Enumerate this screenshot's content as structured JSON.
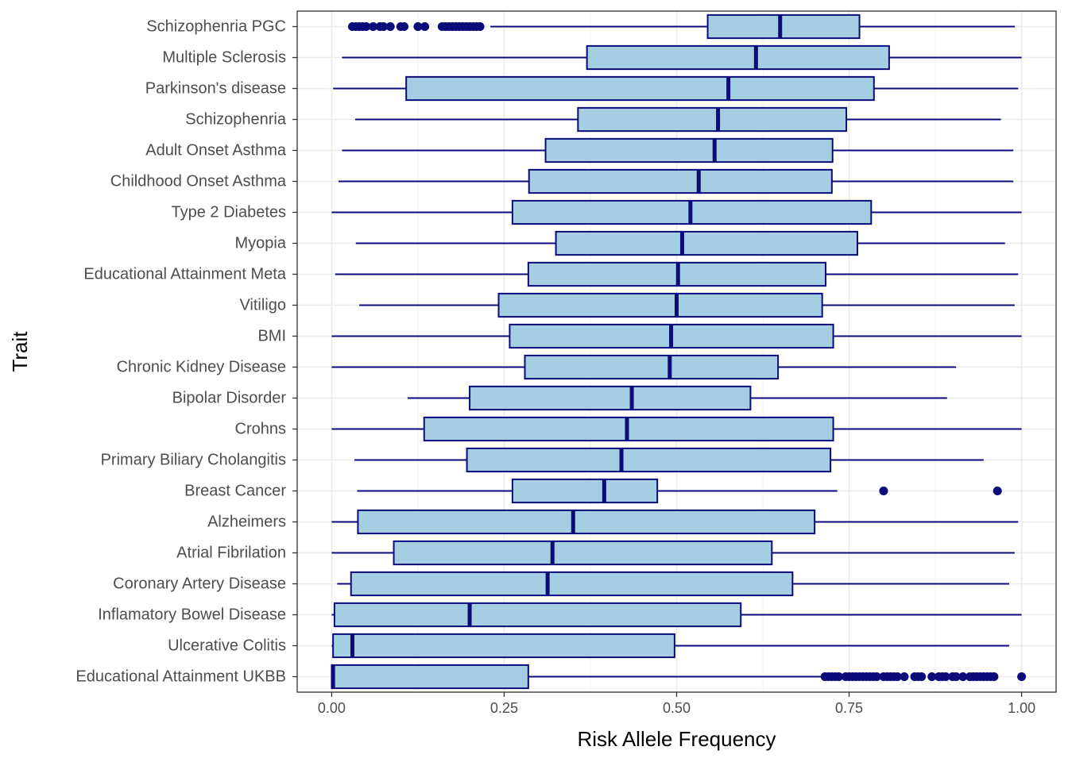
{
  "chart_data": {
    "type": "boxplot",
    "orientation": "horizontal",
    "xlabel": "Risk Allele Frequency",
    "ylabel": "Trait",
    "xlim": [
      -0.05,
      1.05
    ],
    "x_ticks": [
      "0.00",
      "0.25",
      "0.50",
      "0.75",
      "1.00"
    ],
    "x_tick_values": [
      0,
      0.25,
      0.5,
      0.75,
      1.0
    ],
    "grid": true,
    "colors": {
      "box_fill": "#a6cee3",
      "box_stroke": "#0b0b7a",
      "grid": "#ebebeb",
      "panel_border": "#333333"
    },
    "categories": [
      "Schizophenria PGC",
      "Multiple Sclerosis",
      "Parkinson's disease",
      "Schizophenria",
      "Adult Onset Asthma",
      "Childhood Onset Asthma",
      "Type 2 Diabetes",
      "Myopia",
      "Educational Attainment Meta",
      "Vitiligo",
      "BMI",
      "Chronic Kidney Disease",
      "Bipolar Disorder",
      "Crohns",
      "Primary Biliary Cholangitis",
      "Breast Cancer",
      "Alzheimers",
      "Atrial Fibrilation",
      "Coronary Artery Disease",
      "Inflamatory Bowel Disease",
      "Ulcerative Colitis",
      "Educational Attainment UKBB"
    ],
    "boxes": [
      {
        "wmin": 0.23,
        "q1": 0.545,
        "median": 0.65,
        "q3": 0.765,
        "wmax": 0.99,
        "outliers": [
          0.03,
          0.035,
          0.04,
          0.045,
          0.05,
          0.06,
          0.07,
          0.075,
          0.085,
          0.1,
          0.105,
          0.125,
          0.135,
          0.16,
          0.165,
          0.17,
          0.175,
          0.18,
          0.185,
          0.19,
          0.195,
          0.2,
          0.205,
          0.21,
          0.215
        ]
      },
      {
        "wmin": 0.015,
        "q1": 0.37,
        "median": 0.615,
        "q3": 0.808,
        "wmax": 1.0,
        "outliers": []
      },
      {
        "wmin": 0.002,
        "q1": 0.108,
        "median": 0.575,
        "q3": 0.786,
        "wmax": 0.995,
        "outliers": []
      },
      {
        "wmin": 0.034,
        "q1": 0.357,
        "median": 0.56,
        "q3": 0.746,
        "wmax": 0.97,
        "outliers": []
      },
      {
        "wmin": 0.015,
        "q1": 0.31,
        "median": 0.555,
        "q3": 0.726,
        "wmax": 0.988,
        "outliers": []
      },
      {
        "wmin": 0.01,
        "q1": 0.286,
        "median": 0.532,
        "q3": 0.725,
        "wmax": 0.988,
        "outliers": []
      },
      {
        "wmin": 0.0,
        "q1": 0.262,
        "median": 0.52,
        "q3": 0.782,
        "wmax": 1.0,
        "outliers": []
      },
      {
        "wmin": 0.035,
        "q1": 0.325,
        "median": 0.508,
        "q3": 0.762,
        "wmax": 0.976,
        "outliers": []
      },
      {
        "wmin": 0.005,
        "q1": 0.285,
        "median": 0.502,
        "q3": 0.716,
        "wmax": 0.995,
        "outliers": []
      },
      {
        "wmin": 0.04,
        "q1": 0.242,
        "median": 0.5,
        "q3": 0.711,
        "wmax": 0.99,
        "outliers": []
      },
      {
        "wmin": 0.0,
        "q1": 0.258,
        "median": 0.492,
        "q3": 0.727,
        "wmax": 1.0,
        "outliers": []
      },
      {
        "wmin": 0.0,
        "q1": 0.28,
        "median": 0.49,
        "q3": 0.647,
        "wmax": 0.905,
        "outliers": []
      },
      {
        "wmin": 0.11,
        "q1": 0.2,
        "median": 0.435,
        "q3": 0.607,
        "wmax": 0.892,
        "outliers": []
      },
      {
        "wmin": 0.0,
        "q1": 0.134,
        "median": 0.428,
        "q3": 0.727,
        "wmax": 1.0,
        "outliers": []
      },
      {
        "wmin": 0.033,
        "q1": 0.196,
        "median": 0.42,
        "q3": 0.723,
        "wmax": 0.945,
        "outliers": []
      },
      {
        "wmin": 0.037,
        "q1": 0.262,
        "median": 0.395,
        "q3": 0.472,
        "wmax": 0.733,
        "outliers": [
          0.8,
          0.965
        ]
      },
      {
        "wmin": 0.0,
        "q1": 0.038,
        "median": 0.35,
        "q3": 0.7,
        "wmax": 0.995,
        "outliers": []
      },
      {
        "wmin": 0.0,
        "q1": 0.09,
        "median": 0.32,
        "q3": 0.638,
        "wmax": 0.99,
        "outliers": []
      },
      {
        "wmin": 0.008,
        "q1": 0.028,
        "median": 0.313,
        "q3": 0.668,
        "wmax": 0.982,
        "outliers": []
      },
      {
        "wmin": 0.0,
        "q1": 0.004,
        "median": 0.2,
        "q3": 0.593,
        "wmax": 1.0,
        "outliers": []
      },
      {
        "wmin": 0.0,
        "q1": 0.002,
        "median": 0.03,
        "q3": 0.497,
        "wmax": 0.982,
        "outliers": []
      },
      {
        "wmin": 0.0,
        "q1": 0.0,
        "median": 0.002,
        "q3": 0.285,
        "wmax": 0.71,
        "outliers": [
          0.715,
          0.72,
          0.725,
          0.73,
          0.735,
          0.745,
          0.75,
          0.755,
          0.76,
          0.765,
          0.77,
          0.775,
          0.78,
          0.785,
          0.79,
          0.8,
          0.805,
          0.81,
          0.815,
          0.82,
          0.83,
          0.845,
          0.85,
          0.855,
          0.87,
          0.88,
          0.885,
          0.89,
          0.9,
          0.905,
          0.915,
          0.925,
          0.93,
          0.935,
          0.94,
          0.945,
          0.95,
          0.955,
          0.96,
          1.0
        ]
      }
    ]
  }
}
